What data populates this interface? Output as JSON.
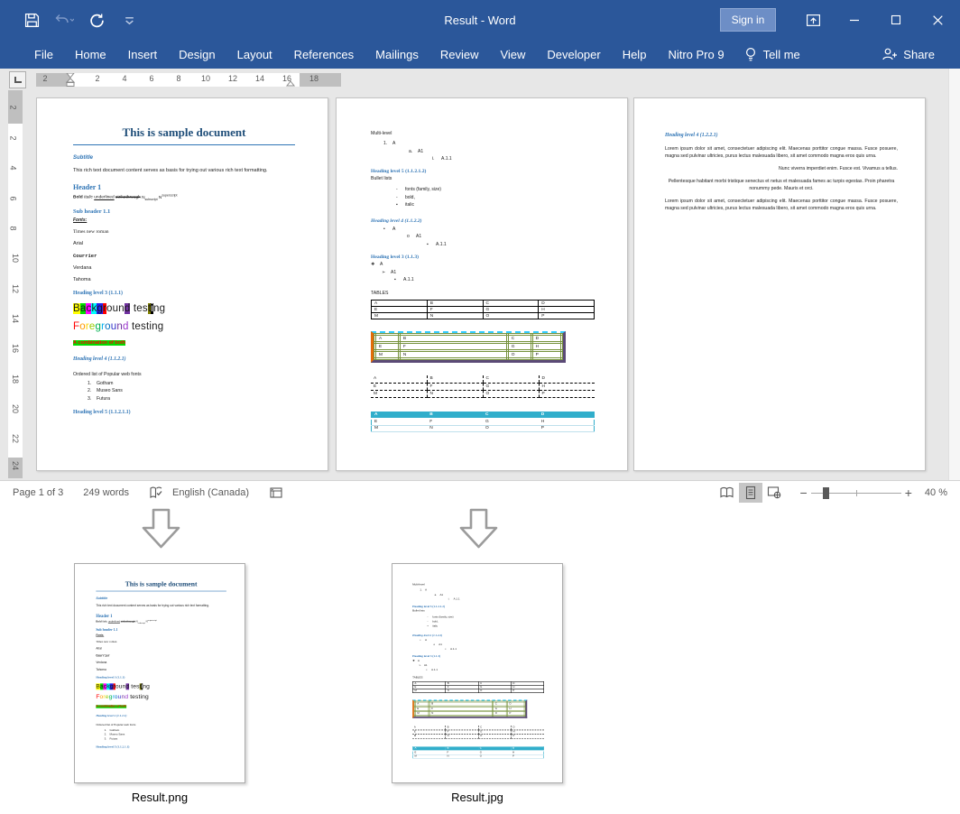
{
  "titlebar": {
    "title": "Result - Word",
    "sign_in": "Sign in"
  },
  "ribbon": {
    "tabs": [
      "File",
      "Home",
      "Insert",
      "Design",
      "Layout",
      "References",
      "Mailings",
      "Review",
      "View",
      "Developer",
      "Help",
      "Nitro Pro 9"
    ],
    "tell_me": "Tell me",
    "share": "Share"
  },
  "ruler": {
    "h_numbers": [
      "2",
      "2",
      "4",
      "6",
      "8",
      "10",
      "12",
      "14",
      "16",
      "18"
    ],
    "v_numbers": [
      "2",
      "2",
      "4",
      "6",
      "8",
      "10",
      "12",
      "14",
      "16",
      "18",
      "20",
      "22",
      "24"
    ]
  },
  "page1": {
    "title": "This is sample document",
    "subtitle": "Subtitle",
    "intro": "This rich text document content serves as basis for trying out various rich text formatting.",
    "header1": "Header 1",
    "fmt": {
      "bold": "Bold",
      "italic": "Italic",
      "underlined": "underlined",
      "strike": "strikethrough",
      "n1": "N",
      "sub": "subscript",
      "n2": "N",
      "sup": "superscript"
    },
    "subheader": "Sub header 1.1",
    "fonts_label": "Fonts:",
    "font_names": [
      {
        "text": "Times new roman",
        "style": "serif"
      },
      {
        "text": "Arial",
        "style": "sans"
      },
      {
        "text": "Courrier",
        "style": "mono"
      },
      {
        "text": "Verdana",
        "style": "sans"
      },
      {
        "text": "Tahoma",
        "style": "sans"
      }
    ],
    "heading3": "Heading level 3 (1.1.1)",
    "background_word": [
      {
        "ch": "B",
        "bg": "#FFFF00"
      },
      {
        "ch": "a",
        "bg": "#00E000"
      },
      {
        "ch": "c",
        "bg": "#FF00FF"
      },
      {
        "ch": "k",
        "bg": "#00FFFF"
      },
      {
        "ch": "g",
        "bg": "#2222EE"
      },
      {
        "ch": "r",
        "bg": "#FF0000"
      },
      {
        "ch": "o"
      },
      {
        "ch": "u"
      },
      {
        "ch": "n"
      },
      {
        "ch": "d",
        "bg": "#7030A0"
      },
      {
        "ch": " "
      },
      {
        "ch": "t"
      },
      {
        "ch": "e"
      },
      {
        "ch": "s"
      },
      {
        "ch": "t",
        "bg": "#808000"
      },
      {
        "ch": "i",
        "bg": "#000000",
        "fg": "#FFFFFF"
      },
      {
        "ch": "n"
      },
      {
        "ch": "g"
      }
    ],
    "foreground_word": [
      {
        "ch": "F",
        "fg": "#FF0000"
      },
      {
        "ch": "o",
        "fg": "#FF9900"
      },
      {
        "ch": "r",
        "fg": "#FFD500"
      },
      {
        "ch": "e",
        "fg": "#99CC00"
      },
      {
        "ch": "g",
        "fg": "#00B050"
      },
      {
        "ch": "r",
        "fg": "#00B0F0"
      },
      {
        "ch": "o",
        "fg": "#0070C0"
      },
      {
        "ch": "u",
        "fg": "#3333CC"
      },
      {
        "ch": "n",
        "fg": "#7030A0"
      },
      {
        "ch": "d",
        "fg": "#9933CC"
      },
      {
        "ch": " "
      },
      {
        "ch": "t"
      },
      {
        "ch": "e"
      },
      {
        "ch": "s"
      },
      {
        "ch": "t"
      },
      {
        "ch": "i"
      },
      {
        "ch": "n"
      },
      {
        "ch": "g"
      }
    ],
    "combo": {
      "text": "A combination of both",
      "fg": "#FF0000",
      "bg": "#00DD00"
    },
    "heading4": "Heading level 4 (1.1.2.1)",
    "ordered_label": "Ordered list of Popular web fonts",
    "ordered_items": [
      {
        "marker": "1.",
        "text": "Gotham"
      },
      {
        "marker": "2.",
        "text": "Museo Sans"
      },
      {
        "marker": "3.",
        "text": "Futura"
      }
    ],
    "heading5": "Heading level 5 (1.1.2.1.1)"
  },
  "page2": {
    "multilevel_label": "Multi-level",
    "multilevel": [
      {
        "marker": "1.",
        "text": "A",
        "indent": 14
      },
      {
        "marker": "a.",
        "text": "A1",
        "indent": 42
      },
      {
        "marker": "i.",
        "text": "A.1.1",
        "indent": 68
      }
    ],
    "heading5": "Heading level 5 (1.1.2.1.2)",
    "bullet_label": "Bullet lists",
    "bullets1": [
      {
        "marker": "-",
        "text": "fonts (family, size)",
        "indent": 28
      },
      {
        "marker": "-",
        "text": "bold,",
        "indent": 28
      },
      {
        "marker": "▪",
        "text": "italic",
        "indent": 28
      }
    ],
    "heading4": "Heading level 4 (1.1.2.2)",
    "bullets2": [
      {
        "marker": "•",
        "text": "A",
        "indent": 14
      },
      {
        "marker": "o",
        "text": "A1",
        "indent": 40
      },
      {
        "marker": "▪",
        "text": "A.1.1",
        "indent": 62
      }
    ],
    "heading3": "Heading level 3 (1.1.3)",
    "bullets3": [
      {
        "marker": "❖",
        "text": "A",
        "indent": 0
      },
      {
        "marker": "➢",
        "text": "A1",
        "indent": 12
      },
      {
        "marker": "▪",
        "text": "A.1.1",
        "indent": 26
      }
    ],
    "tables_label": "TABLES",
    "table_cells": [
      [
        "A",
        "B",
        "C",
        "D"
      ],
      [
        "E",
        "F",
        "G",
        "H"
      ],
      [
        "M",
        "N",
        "O",
        "P"
      ]
    ]
  },
  "page3": {
    "heading4": "Heading level 4 (1.2.2.1)",
    "para1": "Lorem ipsum dolor sit amet, consectetuer adipiscing elit. Maecenas porttitor congue massa. Fusce posuere, magna sed pulvinar ultricies, purus lectus malesuada libero, sit amet commodo magna eros quis urna.",
    "para2": "Nunc viverra imperdiet enim. Fusce est. Vivamus a tellus.",
    "para3": "Pellentesque habitant morbi tristique senectus et netus et malesuada fames ac turpis egestas. Proin pharetra nonummy pede. Mauris et orci.",
    "para4": "Lorem ipsum dolor sit amet, consectetuer adipiscing elit. Maecenas porttitor congue massa. Fusce posuere, magna sed pulvinar ultricies, purus lectus malesuada libero, sit amet commodo magna eros quis urna."
  },
  "statusbar": {
    "page_indicator": "Page 1 of 3",
    "word_count": "249 words",
    "language": "English (Canada)",
    "zoom_level": "40 %"
  },
  "outputs": [
    {
      "label": "Result.png"
    },
    {
      "label": "Result.jpg"
    }
  ],
  "colors": {
    "titlebar": "#2B579A",
    "heading_blue": "#2E74B5",
    "title_text": "#1F4E79",
    "table_header_teal": "#31AECB",
    "fancy_border_orange": "#E36C0A",
    "fancy_border_purple": "#5B4A77",
    "fancy_border_olive": "#76923C",
    "fancy_border_cyan": "#33CCFF"
  }
}
